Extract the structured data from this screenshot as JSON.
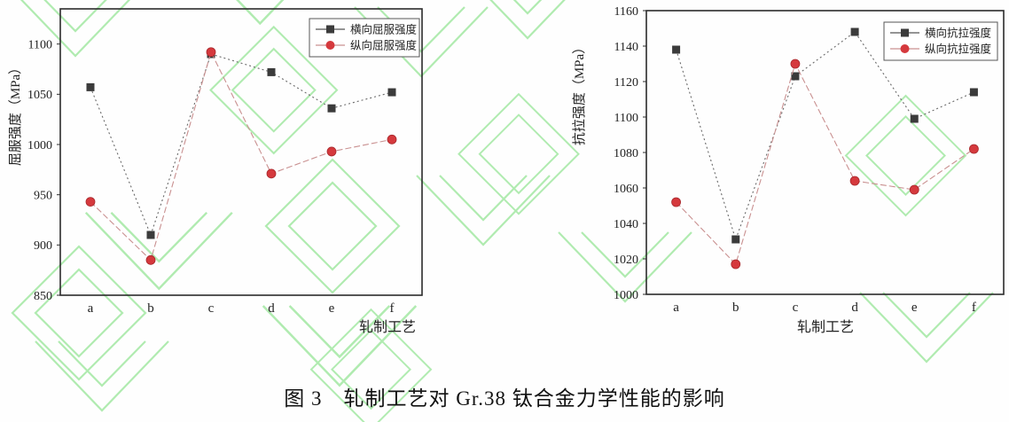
{
  "page": {
    "background": "#fefefe"
  },
  "watermark": {
    "name": "green-logo-watermark",
    "color": "#9de69d"
  },
  "figure_caption": "图 3　轧制工艺对 Gr.38 钛合金力学性能的影响",
  "chart_data": [
    {
      "type": "line",
      "title": "",
      "xlabel": "轧制工艺",
      "ylabel": "屈服强度（MPa）",
      "categories": [
        "a",
        "b",
        "c",
        "d",
        "e",
        "f"
      ],
      "ylim": [
        850,
        1135
      ],
      "yticks": [
        850,
        900,
        950,
        1000,
        1050,
        1100
      ],
      "grid": false,
      "legend_position": "upper right",
      "series": [
        {
          "name": "横向屈服强度",
          "marker": "square",
          "marker_color": "#3b3b3b",
          "line_color": "#6a6a6a",
          "line_style": "dotted",
          "values": [
            1057,
            910,
            1090,
            1072,
            1036,
            1052
          ]
        },
        {
          "name": "纵向屈服强度",
          "marker": "circle",
          "marker_color": "#d5393d",
          "line_color": "#c99090",
          "line_style": "dashed",
          "values": [
            943,
            885,
            1092,
            971,
            993,
            1005
          ]
        }
      ]
    },
    {
      "type": "line",
      "title": "",
      "xlabel": "轧制工艺",
      "ylabel": "抗拉强度（MPa）",
      "categories": [
        "a",
        "b",
        "c",
        "d",
        "e",
        "f"
      ],
      "ylim": [
        1000,
        1160
      ],
      "yticks": [
        1000,
        1020,
        1040,
        1060,
        1080,
        1100,
        1120,
        1140,
        1160
      ],
      "grid": false,
      "legend_position": "upper right",
      "series": [
        {
          "name": "横向抗拉强度",
          "marker": "square",
          "marker_color": "#3b3b3b",
          "line_color": "#6a6a6a",
          "line_style": "dotted",
          "values": [
            1138,
            1031,
            1123,
            1148,
            1099,
            1114
          ]
        },
        {
          "name": "纵向抗拉强度",
          "marker": "circle",
          "marker_color": "#d5393d",
          "line_color": "#c99090",
          "line_style": "dashed",
          "values": [
            1052,
            1017,
            1130,
            1064,
            1059,
            1082
          ]
        }
      ]
    }
  ]
}
